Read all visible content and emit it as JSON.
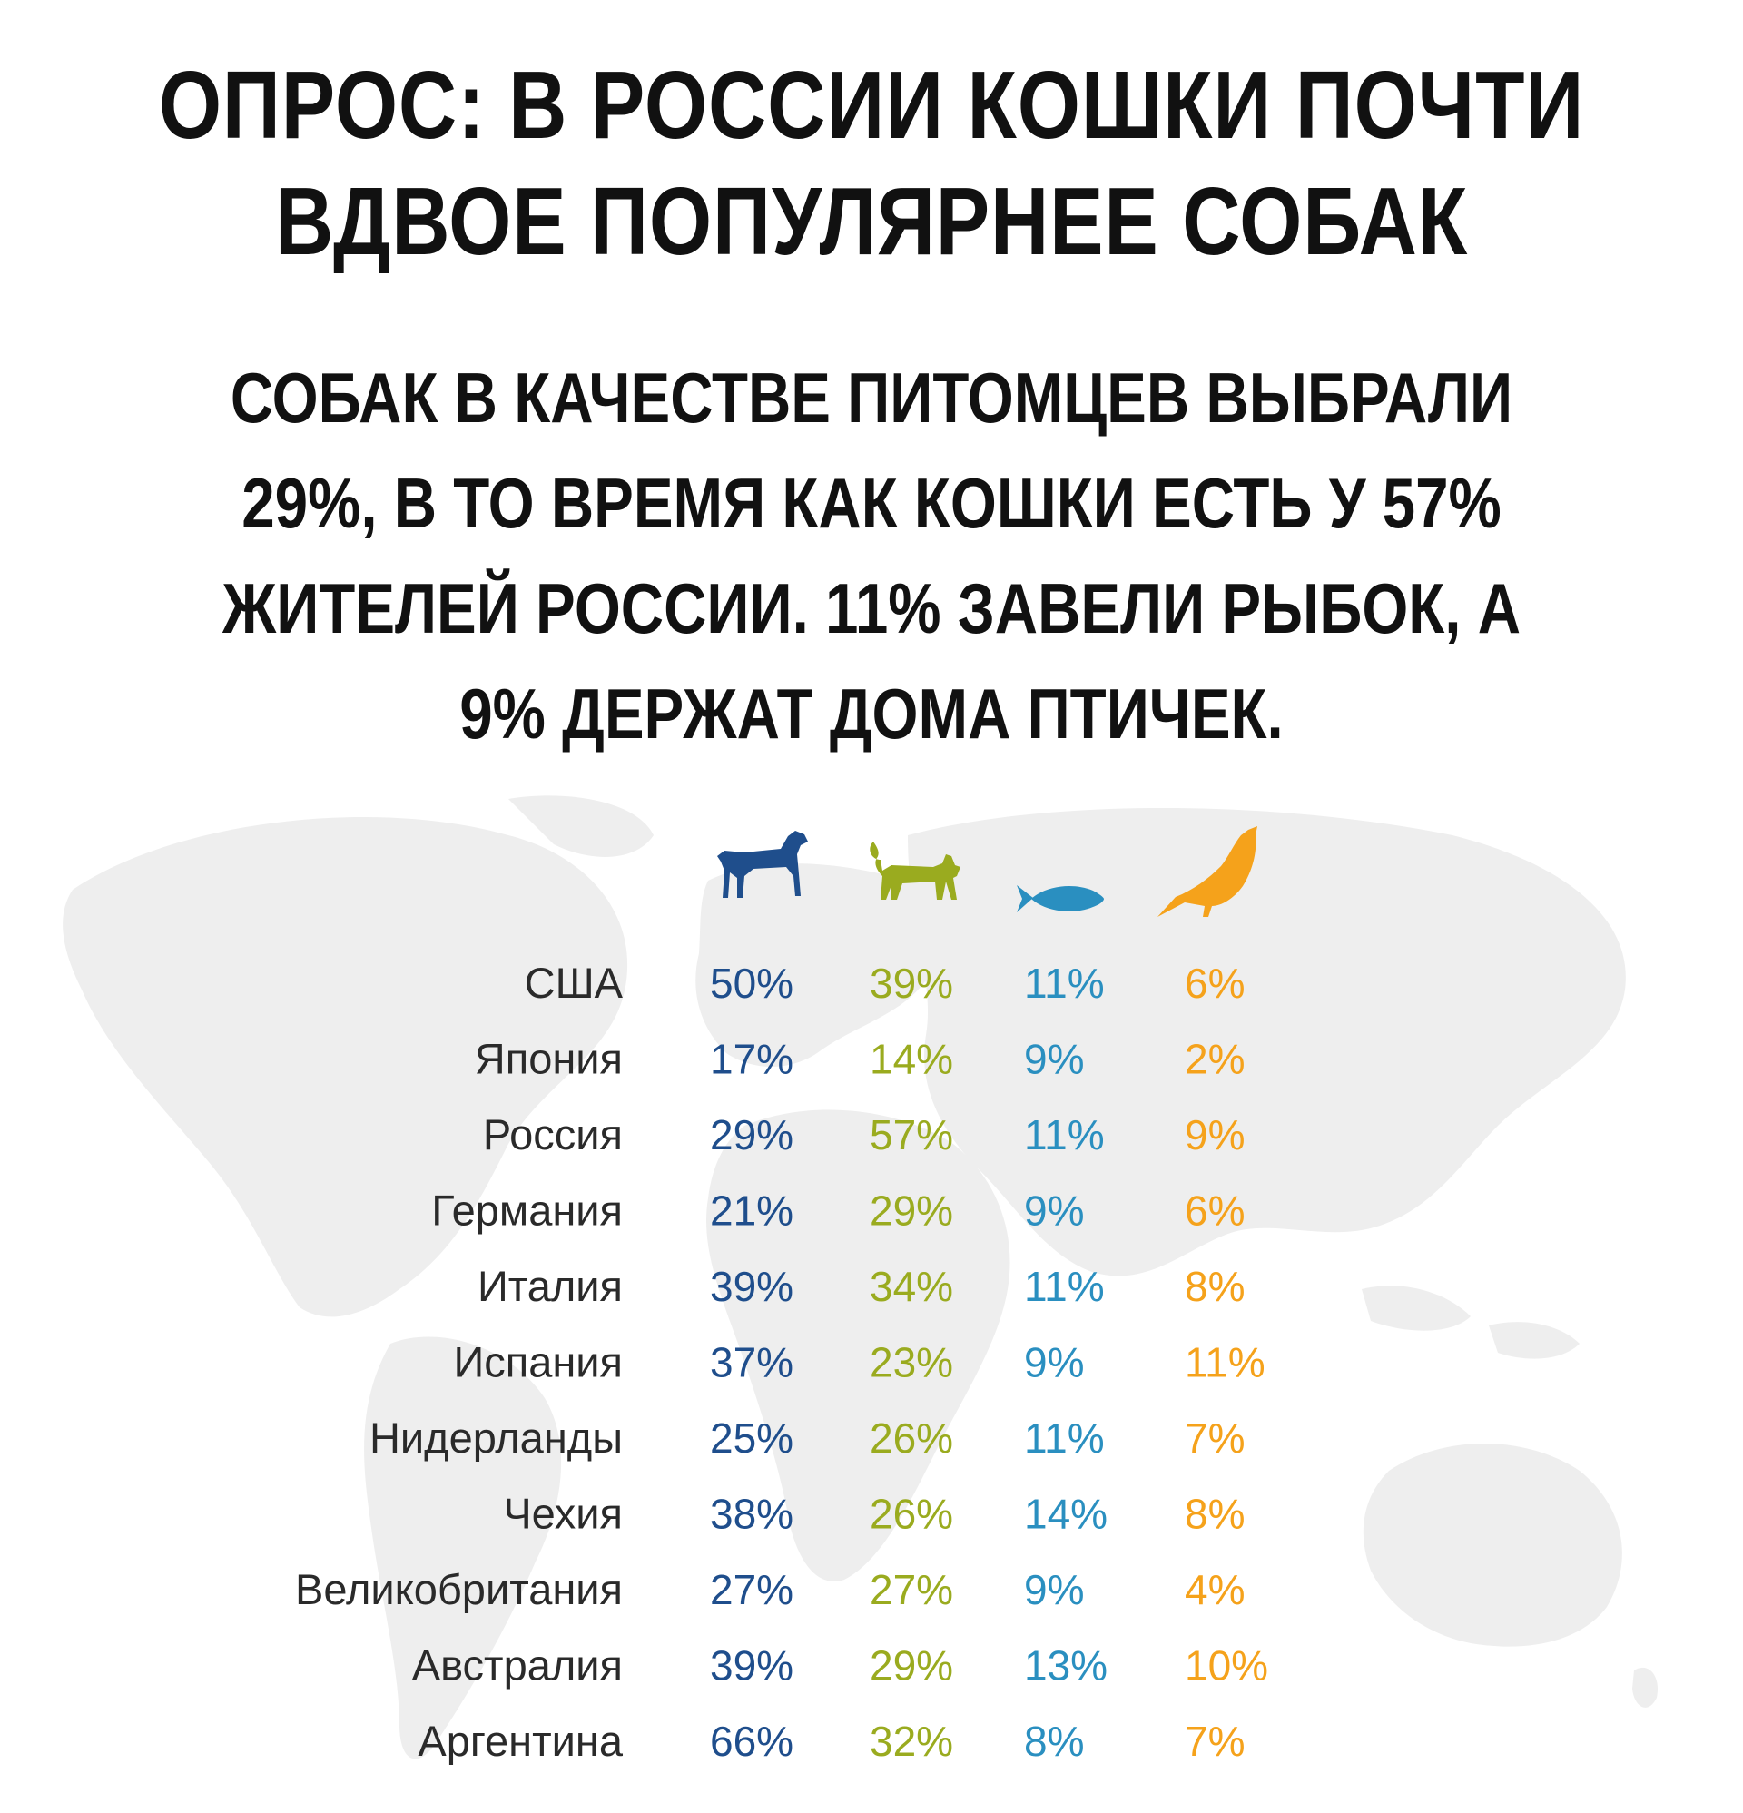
{
  "header": {
    "title_lines": [
      "ОПРОС: В РОССИИ КОШКИ ПОЧТИ",
      "ВДВОЕ ПОПУЛЯРНЕЕ СОБАК"
    ],
    "subtitle_lines": [
      "СОБАК В КАЧЕСТВЕ ПИТОМЦЕВ ВЫБРАЛИ",
      "29%, В ТО ВРЕМЯ КАК КОШКИ ЕСТЬ У 57%",
      "ЖИТЕЛЕЙ РОССИИ. 11% ЗАВЕЛИ РЫБОК, А",
      "9% ДЕРЖАТ ДОМА ПТИЧЕК."
    ]
  },
  "chart_data": {
    "type": "table",
    "title": "",
    "columns": [
      {
        "icon": "dog-icon",
        "color": "#1f4e8c"
      },
      {
        "icon": "cat-icon",
        "color": "#9aab1f"
      },
      {
        "icon": "fish-icon",
        "color": "#2a8fc0"
      },
      {
        "icon": "bird-icon",
        "color": "#f5a21b"
      }
    ],
    "rows": [
      {
        "country": "США",
        "values": [
          "50%",
          "39%",
          "11%",
          "6%"
        ]
      },
      {
        "country": "Япония",
        "values": [
          "17%",
          "14%",
          "9%",
          "2%"
        ]
      },
      {
        "country": "Россия",
        "values": [
          "29%",
          "57%",
          "11%",
          "9%"
        ]
      },
      {
        "country": "Германия",
        "values": [
          "21%",
          "29%",
          "9%",
          "6%"
        ]
      },
      {
        "country": "Италия",
        "values": [
          "39%",
          "34%",
          "11%",
          "8%"
        ]
      },
      {
        "country": "Испания",
        "values": [
          "37%",
          "23%",
          "9%",
          "11%"
        ]
      },
      {
        "country": "Нидерланды",
        "values": [
          "25%",
          "26%",
          "11%",
          "7%"
        ]
      },
      {
        "country": "Чехия",
        "values": [
          "38%",
          "26%",
          "14%",
          "8%"
        ]
      },
      {
        "country": "Великобритания",
        "values": [
          "27%",
          "27%",
          "9%",
          "4%"
        ]
      },
      {
        "country": "Австралия",
        "values": [
          "39%",
          "29%",
          "13%",
          "10%"
        ]
      },
      {
        "country": "Аргентина",
        "values": [
          "66%",
          "32%",
          "8%",
          "7%"
        ]
      }
    ],
    "background": "world-map"
  }
}
